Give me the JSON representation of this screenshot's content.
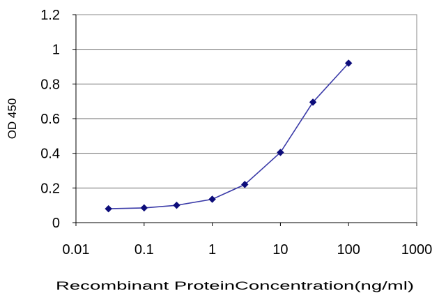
{
  "chart_data": {
    "type": "line",
    "xlabel": "Recombinant ProteinConcentration(ng/ml)",
    "ylabel": "OD 450",
    "x_scale": "log",
    "xlim": [
      0.01,
      1000
    ],
    "ylim": [
      0,
      1.2
    ],
    "x_ticks": [
      "0.01",
      "0.1",
      "1",
      "10",
      "100",
      "1000"
    ],
    "y_ticks": [
      "0",
      "0.2",
      "0.4",
      "0.6",
      "0.8",
      "1",
      "1.2"
    ],
    "grid": "horizontal",
    "legend": "none",
    "series": [
      {
        "x": [
          0.03,
          0.1,
          0.3,
          1,
          3,
          10,
          30,
          100
        ],
        "y": [
          0.08,
          0.085,
          0.1,
          0.135,
          0.22,
          0.405,
          0.695,
          0.92
        ],
        "color": "#3a3aa8",
        "marker": "diamond",
        "marker_color": "#0d0d7a"
      }
    ]
  }
}
